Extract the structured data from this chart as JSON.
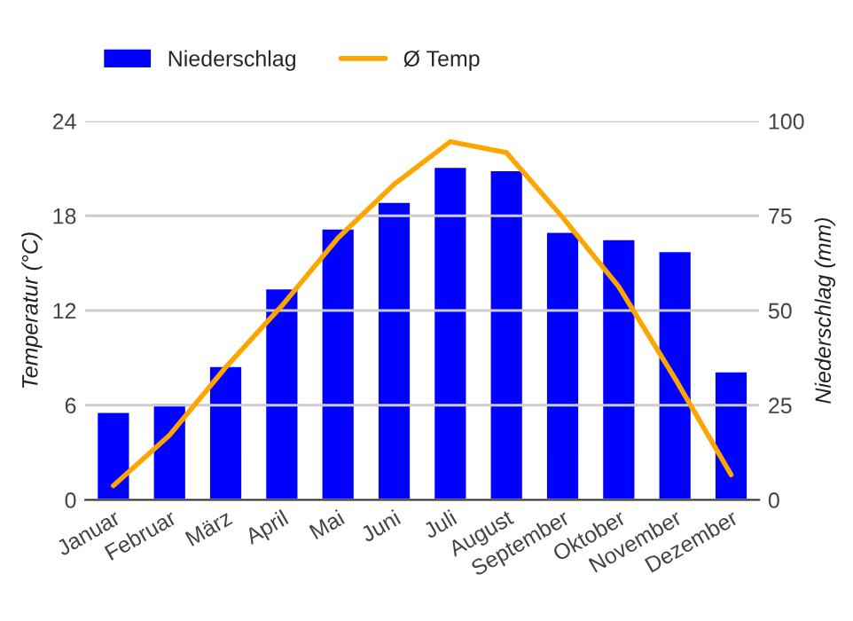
{
  "chart_data": {
    "type": "bar",
    "xlabel": null,
    "ylabel": "Temperatur (°C)",
    "y2label": "Niederschlag (mm)",
    "categories": [
      "Januar",
      "Februar",
      "März",
      "April",
      "Mai",
      "Juni",
      "Juli",
      "August",
      "September",
      "Oktober",
      "November",
      "Dezember"
    ],
    "series": [
      {
        "name": "Niederschlag",
        "axis": "y2",
        "color": "#0000ff",
        "values": [
          23.3,
          25.6,
          35.4,
          55.9,
          71.7,
          78.7,
          88.0,
          87.1,
          70.8,
          68.9,
          65.7,
          34.0
        ]
      },
      {
        "name": "Ø Temp",
        "type": "line",
        "axis": "y",
        "color": "#ffa500",
        "values": [
          0.9,
          4.1,
          8.4,
          12.3,
          16.6,
          20.0,
          22.7,
          22.0,
          17.9,
          13.5,
          7.7,
          1.6
        ]
      }
    ],
    "ylim": [
      0,
      24
    ],
    "yticks": [
      0,
      6,
      12,
      18,
      24
    ],
    "y2lim": [
      0,
      100
    ],
    "y2ticks": [
      0,
      25,
      50,
      75,
      100
    ],
    "grid": "y",
    "legend": "top left",
    "marker": "none",
    "line_style": "solid"
  }
}
